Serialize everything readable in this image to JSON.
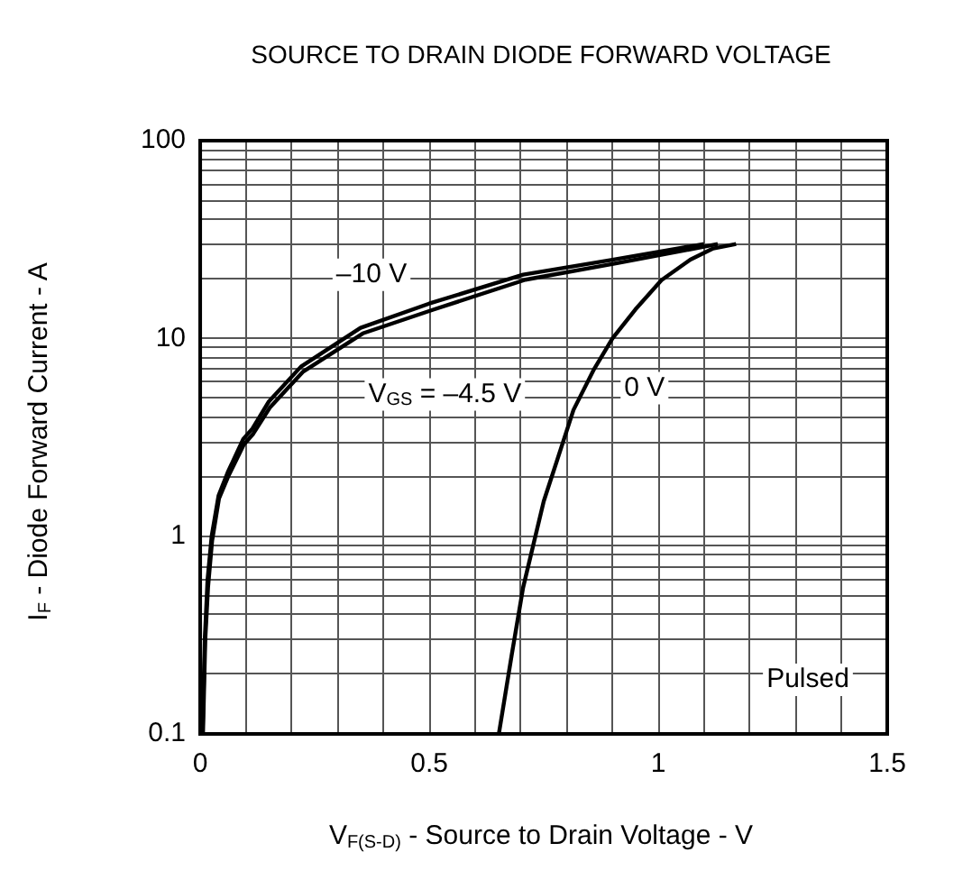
{
  "chart_data": {
    "type": "line",
    "title": "SOURCE TO DRAIN DIODE FORWARD VOLTAGE",
    "xlabel": "V$_{F(S-D)}$ - Source to Drain Voltage - V",
    "ylabel": "I$_{F}$ - Diode Forward Current - A",
    "log": "y",
    "grid": true,
    "legend": false,
    "marker": "none",
    "line_style": "solid",
    "xlim": [
      0,
      1.5
    ],
    "ylim": [
      0.1,
      100
    ],
    "xticks": [
      0,
      {
        "value": 0.1,
        "label": null
      },
      {
        "value": 0.2,
        "label": null
      },
      {
        "value": 0.3,
        "label": null
      },
      {
        "value": 0.4,
        "label": null
      },
      0.5,
      {
        "value": 0.6,
        "label": null
      },
      {
        "value": 0.7,
        "label": null
      },
      {
        "value": 0.8,
        "label": null
      },
      {
        "value": 0.9,
        "label": null
      },
      1,
      {
        "value": 1.1,
        "label": null
      },
      {
        "value": 1.2,
        "label": null
      },
      {
        "value": 1.3,
        "label": null
      },
      {
        "value": 1.4,
        "label": null
      },
      1.5
    ],
    "yticks": [
      0.1,
      {
        "value": 0.2,
        "label": null
      },
      {
        "value": 0.3,
        "label": null
      },
      {
        "value": 0.4,
        "label": null
      },
      {
        "value": 0.5,
        "label": null
      },
      {
        "value": 0.6,
        "label": null
      },
      {
        "value": 0.7,
        "label": null
      },
      {
        "value": 0.8,
        "label": null
      },
      {
        "value": 0.9,
        "label": null
      },
      1,
      {
        "value": 2,
        "label": null
      },
      {
        "value": 3,
        "label": null
      },
      {
        "value": 4,
        "label": null
      },
      {
        "value": 5,
        "label": null
      },
      {
        "value": 6,
        "label": null
      },
      {
        "value": 7,
        "label": null
      },
      {
        "value": 8,
        "label": null
      },
      {
        "value": 9,
        "label": null
      },
      10,
      {
        "value": 20,
        "label": null
      },
      {
        "value": 30,
        "label": null
      },
      {
        "value": 40,
        "label": null
      },
      {
        "value": 50,
        "label": null
      },
      {
        "value": 60,
        "label": null
      },
      {
        "value": 70,
        "label": null
      },
      {
        "value": 80,
        "label": null
      },
      {
        "value": 90,
        "label": null
      },
      100
    ],
    "annotations": [
      "Pulsed"
    ],
    "series": [
      {
        "name": "–10 V",
        "color": "#000000",
        "x": [
          0.005,
          0.01,
          0.016,
          0.025,
          0.04,
          0.06,
          0.094,
          0.114,
          0.15,
          0.22,
          0.35,
          0.5,
          0.705,
          0.9,
          1.1
        ],
        "values": [
          0.1,
          0.3,
          0.6,
          1.0,
          1.6,
          2.1,
          3.1,
          3.5,
          4.8,
          7.2,
          11.3,
          15,
          21,
          25,
          30
        ]
      },
      {
        "name": "V$_{GS}$ = –4.5 V",
        "color": "#000000",
        "x": [
          0.006,
          0.011,
          0.017,
          0.026,
          0.041,
          0.061,
          0.095,
          0.116,
          0.153,
          0.225,
          0.355,
          0.51,
          0.71,
          0.91,
          1.13
        ],
        "values": [
          0.1,
          0.3,
          0.55,
          0.95,
          1.55,
          2.0,
          2.9,
          3.3,
          4.5,
          6.8,
          10.6,
          14,
          19.8,
          24,
          30
        ]
      },
      {
        "name": "0 V",
        "color": "#000000",
        "x": [
          0.652,
          0.68,
          0.705,
          0.75,
          0.815,
          0.86,
          0.9,
          0.95,
          1.007,
          1.07,
          1.12,
          1.17
        ],
        "values": [
          0.1,
          0.25,
          0.55,
          1.5,
          4.35,
          7,
          10,
          14,
          19.7,
          25,
          28.5,
          30
        ]
      }
    ]
  }
}
